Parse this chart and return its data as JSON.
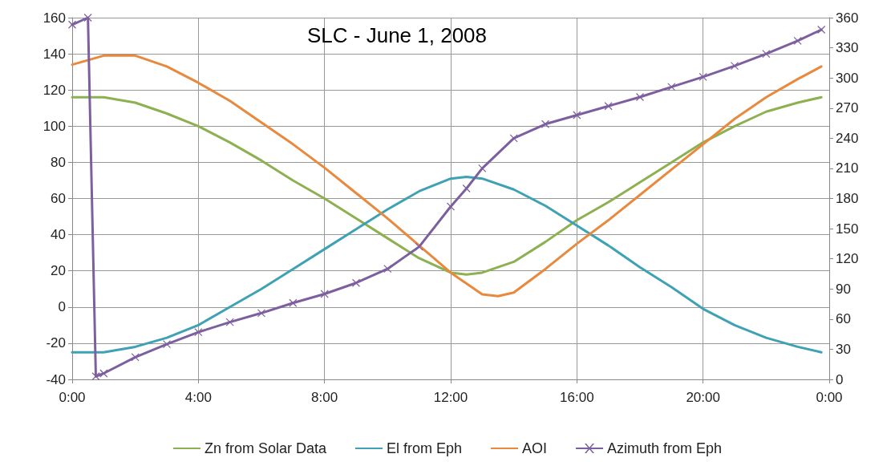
{
  "chart_data": {
    "type": "line",
    "title": "SLC - June 1, 2008",
    "xlim": [
      0,
      24
    ],
    "xticks": [
      {
        "value": 0,
        "label": "0:00"
      },
      {
        "value": 4,
        "label": "4:00"
      },
      {
        "value": 8,
        "label": "8:00"
      },
      {
        "value": 12,
        "label": "12:00"
      },
      {
        "value": 16,
        "label": "16:00"
      },
      {
        "value": 20,
        "label": "20:00"
      },
      {
        "value": 24,
        "label": "0:00"
      }
    ],
    "ylim": [
      -40,
      160
    ],
    "yticks": [
      -40,
      -20,
      0,
      20,
      40,
      60,
      80,
      100,
      120,
      140,
      160
    ],
    "y2lim": [
      0,
      360
    ],
    "y2ticks": [
      0,
      30,
      60,
      90,
      120,
      150,
      180,
      210,
      240,
      270,
      300,
      330,
      360
    ],
    "grid": true,
    "legend": "bottom",
    "marker": "none",
    "line_style": "solid",
    "series": [
      {
        "name": "Zn from Solar Data",
        "color": "#8db050",
        "x": [
          0,
          1,
          2,
          3,
          4,
          5,
          6,
          7,
          8,
          9,
          10,
          11,
          12,
          12.5,
          13,
          14,
          15,
          16,
          17,
          18,
          19,
          20,
          21,
          22,
          23,
          23.75
        ],
        "values": [
          116,
          116,
          113,
          107,
          100,
          91,
          81,
          70,
          60,
          49,
          38,
          27,
          19,
          18,
          19,
          25,
          36,
          48,
          58,
          69,
          80,
          91,
          100,
          108,
          113,
          116
        ]
      },
      {
        "name": "El from Eph",
        "color": "#3fa1b4",
        "x": [
          0,
          1,
          2,
          3,
          4,
          5,
          6,
          7,
          8,
          9,
          10,
          11,
          12,
          12.5,
          13,
          14,
          15,
          16,
          17,
          18,
          19,
          20,
          21,
          22,
          23,
          23.75
        ],
        "values": [
          -25,
          -25,
          -22,
          -17,
          -10,
          0,
          10,
          21,
          32,
          43,
          54,
          64,
          71,
          72,
          71,
          65,
          56,
          45,
          34,
          22,
          11,
          -1,
          -10,
          -17,
          -22,
          -25
        ]
      },
      {
        "name": "AOI",
        "color": "#e8893e",
        "x": [
          0,
          1,
          2,
          3,
          4,
          5,
          6,
          7,
          8,
          9,
          10,
          11,
          12,
          13,
          13.5,
          14,
          15,
          16,
          17,
          18,
          19,
          20,
          21,
          22,
          23,
          23.75
        ],
        "values": [
          134,
          139,
          139,
          133,
          124,
          114,
          102,
          90,
          77,
          63,
          49,
          34,
          19,
          7,
          6,
          8,
          21,
          35,
          48,
          62,
          76,
          90,
          104,
          116,
          126,
          133
        ]
      },
      {
        "name": "Azimuth from Eph",
        "color": "#7d5fa0",
        "axis": "y2",
        "marker": "cross",
        "x": [
          0,
          0.5,
          0.75,
          1,
          2,
          3,
          4,
          5,
          6,
          7,
          8,
          9,
          10,
          11,
          12,
          12.5,
          13,
          14,
          15,
          16,
          17,
          18,
          19,
          20,
          21,
          22,
          23,
          23.75
        ],
        "values": [
          353,
          360,
          3,
          6,
          22,
          35,
          47,
          57,
          66,
          76,
          85,
          96,
          110,
          132,
          172,
          190,
          210,
          240,
          254,
          263,
          272,
          281,
          291,
          301,
          312,
          324,
          337,
          348
        ]
      }
    ]
  }
}
